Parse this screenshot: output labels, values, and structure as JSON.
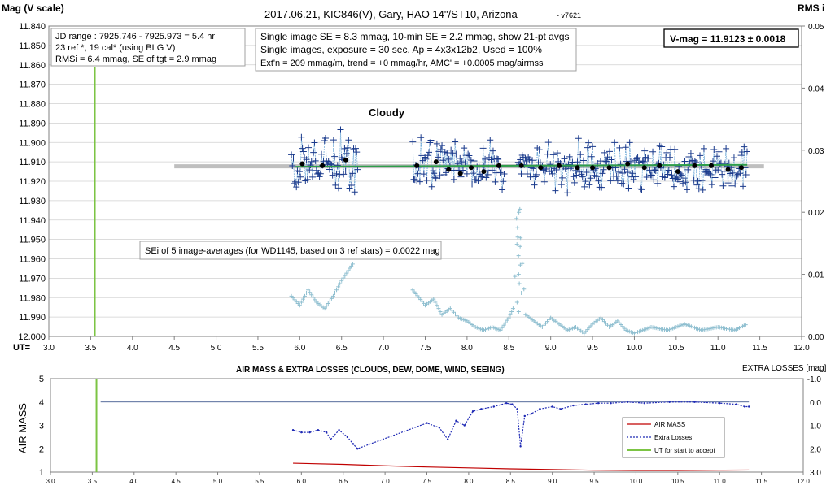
{
  "top": {
    "title": "2017.06.21,  KIC846(V),  Gary,  HAO 14\"/ST10, Arizona",
    "version": "- v7621",
    "y_axis_label": "Mag (V scale)",
    "right_axis_label": "RMS i",
    "x_axis_prefix": "UT=",
    "box_left": [
      "JD range : 7925.746 - 7925.973 = 5.4 hr",
      "23 ref *, 19 cal* (using BLG V)",
      "RMSi = 6.4 mmag, SE of tgt = 2.9 mmag"
    ],
    "box_mid": [
      "Single image SE = 8.3 mmag, 10-min SE = 2.2 mmag, show 21-pt avgs",
      "Single images, exposure = 30 sec, Ap = 4x3x12b2, Used = 100%",
      "Ext'n = 209 mmag/m, trend = +0 mmag/hr, AMC' = +0.0005 mag/airmss"
    ],
    "vmag_box": "V-mag = 11.9123 ± 0.0018",
    "cloudy_label": "Cloudy",
    "sei_box": "SEi of 5 image-averages (for WD1145, based on 3 ref stars) = 0.0022 mag"
  },
  "bottom": {
    "title": "AIR MASS & EXTRA LOSSES (CLOUDS, DEW, DOME, WIND, SEEING)",
    "y_axis_label": "AIR MASS",
    "right_axis_label": "EXTRA LOSSES [mag]",
    "legend": [
      "AIR MASS",
      "Extra Losses",
      "UT for start to accept"
    ]
  },
  "colors": {
    "data_cross": "#1a3a8c",
    "avg_line": "#6aa7d6",
    "avg_point": "#000000",
    "rms_cross": "#8fbfd0",
    "mean_line": "#bfbfbf",
    "fit_line": "#2e9e4a",
    "accept_line": "#7cc444",
    "airmass": "#c00000",
    "losses": "#1f2ab5",
    "zero_line": "#1f3a7a"
  },
  "chart_data": [
    {
      "type": "scatter",
      "title": "2017.06.21,  KIC846(V),  Gary,  HAO 14\"/ST10, Arizona",
      "xlabel": "UT=",
      "ylabel": "Mag (V scale)",
      "y2label": "RMS i",
      "xlim": [
        3.0,
        12.0
      ],
      "ylim": [
        11.84,
        12.0
      ],
      "y_inverted": true,
      "y2lim": [
        0.0,
        0.05
      ],
      "x_ticks": [
        "3.0",
        "3.5",
        "4.0",
        "4.5",
        "5.0",
        "5.5",
        "6.0",
        "6.5",
        "7.0",
        "7.5",
        "8.0",
        "8.5",
        "9.0",
        "9.5",
        "10.0",
        "10.5",
        "11.0",
        "11.5",
        "12.0"
      ],
      "y_ticks": [
        "11.840",
        "11.850",
        "11.860",
        "11.870",
        "11.880",
        "11.890",
        "11.900",
        "11.910",
        "11.920",
        "11.930",
        "11.940",
        "11.950",
        "11.960",
        "11.970",
        "11.980",
        "11.990",
        "12.000"
      ],
      "y2_ticks": [
        "0.00",
        "0.01",
        "0.02",
        "0.03",
        "0.04",
        "0.05"
      ],
      "grid": true,
      "accept_ut": 3.55,
      "mean_mag": 11.9123,
      "series": [
        {
          "name": "Single images",
          "x_range": [
            5.9,
            11.35
          ],
          "gap": [
            6.7,
            7.35
          ],
          "cloudy_gap": [
            8.45,
            8.6
          ],
          "y_center": 11.9123,
          "y_scatter": 0.009
        },
        {
          "name": "21-pt avgs",
          "x": [
            6.03,
            6.27,
            6.55,
            7.4,
            7.63,
            7.78,
            7.92,
            8.05,
            8.2,
            8.38,
            8.65,
            8.88,
            9.1,
            9.32,
            9.5,
            9.7,
            9.92,
            10.12,
            10.3,
            10.52,
            10.72,
            10.92,
            11.12,
            11.28
          ],
          "y": [
            11.911,
            11.912,
            11.909,
            11.912,
            11.91,
            11.914,
            11.916,
            11.913,
            11.915,
            11.912,
            11.912,
            11.913,
            11.912,
            11.913,
            11.913,
            11.913,
            11.911,
            11.913,
            11.912,
            11.915,
            11.912,
            11.912,
            11.914,
            11.913
          ]
        },
        {
          "name": "RMSi",
          "x": [
            5.9,
            6.0,
            6.1,
            6.2,
            6.3,
            6.4,
            6.5,
            6.6,
            6.65,
            7.35,
            7.5,
            7.6,
            7.7,
            7.8,
            7.9,
            8.0,
            8.1,
            8.2,
            8.3,
            8.4,
            8.5,
            8.55,
            8.62,
            8.7,
            8.8,
            8.9,
            9.0,
            9.1,
            9.2,
            9.3,
            9.4,
            9.5,
            9.6,
            9.7,
            9.8,
            9.9,
            10.0,
            10.2,
            10.4,
            10.6,
            10.8,
            11.0,
            11.2,
            11.35
          ],
          "y": [
            0.0065,
            0.005,
            0.0075,
            0.0055,
            0.0045,
            0.0065,
            0.009,
            0.011,
            0.012,
            0.0075,
            0.005,
            0.006,
            0.0035,
            0.0045,
            0.003,
            0.0025,
            0.0015,
            0.001,
            0.0015,
            0.001,
            0.003,
            0.0045,
            0.02,
            0.0035,
            0.0025,
            0.0015,
            0.003,
            0.002,
            0.001,
            0.0015,
            0.0005,
            0.002,
            0.003,
            0.0015,
            0.0025,
            0.001,
            0.0005,
            0.0015,
            0.001,
            0.002,
            0.001,
            0.0015,
            0.001,
            0.002
          ]
        }
      ]
    },
    {
      "type": "line",
      "title": "AIR MASS & EXTRA LOSSES (CLOUDS, DEW, DOME, WIND, SEEING)",
      "ylabel": "AIR MASS",
      "y2label": "EXTRA LOSSES [mag]",
      "xlim": [
        3.0,
        12.0
      ],
      "ylim": [
        1,
        5
      ],
      "y2lim": [
        -1.0,
        3.0
      ],
      "y2_inverted": true,
      "x_ticks": [
        "3.0",
        "3.5",
        "4.0",
        "4.5",
        "5.0",
        "5.5",
        "6.0",
        "6.5",
        "7.0",
        "7.5",
        "8.0",
        "8.5",
        "9.0",
        "9.5",
        "10.0",
        "10.5",
        "11.0",
        "11.5",
        "12.0"
      ],
      "y_ticks": [
        "1",
        "2",
        "3",
        "4",
        "5"
      ],
      "y2_ticks": [
        "-1.0",
        "0.0",
        "1.0",
        "2.0",
        "3.0"
      ],
      "legend_position": "bottom-right",
      "series": [
        {
          "name": "AIR MASS",
          "x": [
            5.9,
            6.5,
            7.0,
            7.5,
            8.0,
            8.5,
            9.0,
            9.5,
            10.0,
            10.5,
            11.0,
            11.35
          ],
          "y": [
            1.38,
            1.33,
            1.27,
            1.22,
            1.18,
            1.14,
            1.11,
            1.08,
            1.07,
            1.07,
            1.08,
            1.09
          ]
        },
        {
          "name": "Extra Losses",
          "x": [
            5.9,
            6.0,
            6.1,
            6.2,
            6.3,
            6.35,
            6.45,
            6.55,
            6.62,
            6.67,
            7.5,
            7.65,
            7.75,
            7.85,
            7.95,
            8.05,
            8.15,
            8.3,
            8.45,
            8.52,
            8.58,
            8.62,
            8.67,
            8.75,
            8.85,
            9.0,
            9.1,
            9.25,
            9.4,
            9.55,
            9.7,
            9.9,
            10.1,
            10.4,
            10.7,
            11.0,
            11.2,
            11.3,
            11.35
          ],
          "y": [
            1.2,
            1.3,
            1.3,
            1.2,
            1.3,
            1.6,
            1.2,
            1.5,
            1.8,
            2.0,
            0.9,
            1.1,
            1.6,
            0.8,
            1.0,
            0.4,
            0.3,
            0.2,
            0.05,
            0.1,
            0.3,
            1.9,
            0.6,
            0.5,
            0.3,
            0.2,
            0.3,
            0.15,
            0.1,
            0.05,
            0.05,
            0.0,
            0.05,
            0.0,
            0.0,
            0.05,
            0.1,
            0.2,
            0.2
          ]
        },
        {
          "name": "UT for start to accept",
          "x": [
            3.55,
            3.55
          ],
          "y": [
            1,
            5
          ]
        }
      ]
    }
  ]
}
